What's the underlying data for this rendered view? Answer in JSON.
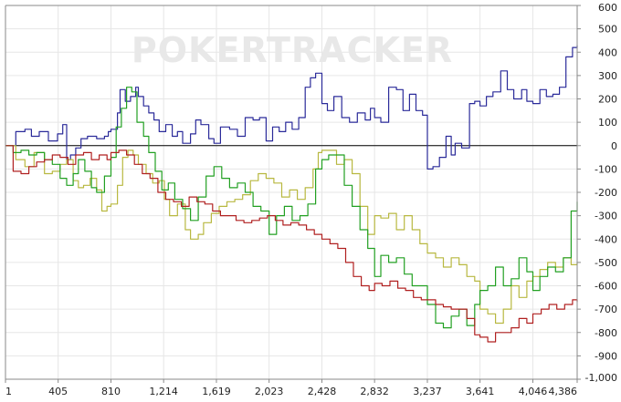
{
  "chart_data": {
    "type": "line",
    "title": "",
    "xlabel": "",
    "ylabel": "",
    "watermark": "POKERTRACKER",
    "grid": true,
    "xlim": [
      1,
      4386
    ],
    "ylim": [
      -1000,
      600
    ],
    "x_ticks": [
      1,
      405,
      810,
      1214,
      1619,
      2023,
      2428,
      2832,
      3237,
      3641,
      4046,
      4386
    ],
    "x_tick_labels": [
      "1",
      "405",
      "810",
      "1,214",
      "1,619",
      "2,023",
      "2,428",
      "2,832",
      "3,237",
      "3,641",
      "4,046",
      "4,386"
    ],
    "y_ticks": [
      600,
      500,
      400,
      300,
      200,
      100,
      0,
      -100,
      -200,
      -300,
      -400,
      -500,
      -600,
      -700,
      -800,
      -900,
      -1000
    ],
    "y_tick_labels": [
      "600",
      "500",
      "400",
      "300",
      "200",
      "100",
      "0",
      "-100",
      "-200",
      "-300",
      "-400",
      "-500",
      "-600",
      "-700",
      "-800",
      "-900",
      "-1,000"
    ],
    "series": [
      {
        "color": "#2b2b9a",
        "x": [
          1,
          80,
          150,
          200,
          260,
          330,
          400,
          440,
          470,
          500,
          540,
          580,
          630,
          700,
          760,
          790,
          810,
          860,
          880,
          920,
          960,
          1000,
          1020,
          1060,
          1100,
          1140,
          1180,
          1230,
          1280,
          1320,
          1360,
          1420,
          1460,
          1500,
          1560,
          1600,
          1650,
          1720,
          1780,
          1840,
          1900,
          1950,
          2000,
          2050,
          2100,
          2150,
          2200,
          2250,
          2300,
          2340,
          2380,
          2428,
          2470,
          2520,
          2580,
          2640,
          2700,
          2760,
          2800,
          2832,
          2880,
          2940,
          3000,
          3050,
          3100,
          3150,
          3200,
          3237,
          3280,
          3330,
          3380,
          3420,
          3450,
          3500,
          3560,
          3600,
          3641,
          3690,
          3740,
          3800,
          3850,
          3900,
          3960,
          4000,
          4046,
          4100,
          4150,
          4200,
          4250,
          4300,
          4350,
          4386
        ],
        "y": [
          0,
          60,
          70,
          40,
          60,
          20,
          50,
          90,
          -60,
          -40,
          -10,
          30,
          40,
          30,
          40,
          60,
          70,
          140,
          240,
          190,
          210,
          250,
          210,
          170,
          140,
          110,
          60,
          90,
          40,
          60,
          10,
          50,
          110,
          90,
          30,
          10,
          80,
          70,
          40,
          120,
          110,
          120,
          20,
          80,
          60,
          100,
          70,
          120,
          250,
          290,
          310,
          180,
          150,
          210,
          120,
          100,
          140,
          110,
          160,
          120,
          100,
          250,
          240,
          150,
          220,
          150,
          130,
          -100,
          -90,
          -50,
          40,
          -40,
          10,
          -10,
          180,
          190,
          170,
          210,
          230,
          320,
          240,
          200,
          240,
          190,
          180,
          240,
          210,
          220,
          250,
          380,
          420,
          430
        ]
      },
      {
        "color": "#b8b840",
        "x": [
          1,
          80,
          150,
          220,
          300,
          360,
          420,
          470,
          520,
          560,
          600,
          650,
          700,
          740,
          780,
          810,
          860,
          900,
          940,
          980,
          1020,
          1080,
          1130,
          1180,
          1220,
          1260,
          1320,
          1380,
          1420,
          1480,
          1520,
          1580,
          1640,
          1700,
          1760,
          1820,
          1880,
          1940,
          2000,
          2060,
          2120,
          2180,
          2240,
          2300,
          2360,
          2400,
          2428,
          2480,
          2540,
          2600,
          2660,
          2720,
          2780,
          2832,
          2880,
          2940,
          3000,
          3060,
          3120,
          3180,
          3237,
          3300,
          3360,
          3420,
          3480,
          3540,
          3600,
          3641,
          3700,
          3760,
          3820,
          3880,
          3940,
          4000,
          4046,
          4100,
          4160,
          4220,
          4280,
          4340,
          4386
        ],
        "y": [
          0,
          -60,
          -90,
          -30,
          -120,
          -110,
          -80,
          -60,
          -150,
          -180,
          -170,
          -140,
          -190,
          -280,
          -260,
          -250,
          -170,
          -50,
          -20,
          -40,
          -80,
          -120,
          -160,
          -150,
          -230,
          -300,
          -250,
          -360,
          -400,
          -380,
          -330,
          -290,
          -260,
          -240,
          -230,
          -210,
          -150,
          -120,
          -140,
          -160,
          -220,
          -190,
          -230,
          -180,
          -100,
          -30,
          -20,
          -20,
          -80,
          -60,
          -120,
          -260,
          -380,
          -300,
          -310,
          -290,
          -360,
          -300,
          -360,
          -420,
          -460,
          -480,
          -520,
          -480,
          -510,
          -560,
          -580,
          -700,
          -720,
          -760,
          -700,
          -600,
          -650,
          -580,
          -560,
          -530,
          -500,
          -520,
          -480,
          -510,
          -500
        ]
      },
      {
        "color": "#22a022",
        "x": [
          1,
          60,
          120,
          180,
          240,
          300,
          360,
          420,
          470,
          520,
          560,
          610,
          660,
          700,
          760,
          810,
          850,
          890,
          930,
          970,
          1010,
          1060,
          1100,
          1150,
          1200,
          1250,
          1300,
          1360,
          1420,
          1480,
          1540,
          1600,
          1660,
          1720,
          1780,
          1840,
          1900,
          1960,
          2023,
          2080,
          2140,
          2200,
          2260,
          2320,
          2380,
          2428,
          2480,
          2540,
          2600,
          2660,
          2720,
          2780,
          2832,
          2880,
          2940,
          3000,
          3060,
          3120,
          3180,
          3237,
          3300,
          3360,
          3420,
          3480,
          3540,
          3600,
          3641,
          3700,
          3760,
          3820,
          3880,
          3940,
          4000,
          4046,
          4100,
          4160,
          4220,
          4280,
          4340,
          4386
        ],
        "y": [
          0,
          -30,
          -20,
          -40,
          -30,
          -60,
          -80,
          -140,
          -170,
          -120,
          -60,
          -110,
          -180,
          -200,
          -130,
          -50,
          80,
          160,
          250,
          230,
          100,
          40,
          -30,
          -110,
          -190,
          -160,
          -230,
          -270,
          -320,
          -220,
          -130,
          -90,
          -140,
          -180,
          -160,
          -200,
          -260,
          -280,
          -380,
          -300,
          -260,
          -320,
          -300,
          -250,
          -100,
          -60,
          -40,
          -40,
          -170,
          -260,
          -360,
          -440,
          -560,
          -470,
          -500,
          -480,
          -550,
          -600,
          -600,
          -680,
          -760,
          -780,
          -730,
          -700,
          -770,
          -680,
          -620,
          -600,
          -520,
          -600,
          -570,
          -480,
          -540,
          -620,
          -560,
          -520,
          -540,
          -480,
          -280,
          -240
        ]
      },
      {
        "color": "#b02020",
        "x": [
          1,
          60,
          120,
          180,
          240,
          300,
          360,
          420,
          480,
          540,
          600,
          660,
          720,
          780,
          810,
          870,
          930,
          990,
          1050,
          1110,
          1170,
          1230,
          1290,
          1350,
          1410,
          1470,
          1530,
          1590,
          1650,
          1710,
          1770,
          1830,
          1890,
          1950,
          2010,
          2070,
          2130,
          2190,
          2250,
          2310,
          2370,
          2428,
          2490,
          2550,
          2610,
          2670,
          2730,
          2790,
          2832,
          2890,
          2950,
          3010,
          3070,
          3130,
          3190,
          3237,
          3300,
          3360,
          3420,
          3480,
          3540,
          3600,
          3641,
          3700,
          3760,
          3820,
          3880,
          3940,
          4000,
          4046,
          4110,
          4170,
          4230,
          4290,
          4350,
          4386
        ],
        "y": [
          0,
          -110,
          -120,
          -90,
          -70,
          -60,
          -40,
          -50,
          -80,
          -40,
          -30,
          -60,
          -40,
          -60,
          -30,
          -20,
          -40,
          -80,
          -120,
          -140,
          -200,
          -230,
          -240,
          -260,
          -220,
          -240,
          -250,
          -280,
          -300,
          -300,
          -320,
          -330,
          -320,
          -310,
          -300,
          -320,
          -340,
          -330,
          -340,
          -360,
          -380,
          -400,
          -420,
          -440,
          -500,
          -560,
          -600,
          -620,
          -590,
          -600,
          -580,
          -610,
          -620,
          -650,
          -660,
          -660,
          -680,
          -690,
          -700,
          -700,
          -740,
          -810,
          -820,
          -840,
          -800,
          -800,
          -780,
          -740,
          -760,
          -720,
          -700,
          -680,
          -700,
          -680,
          -660,
          -670
        ]
      }
    ]
  }
}
